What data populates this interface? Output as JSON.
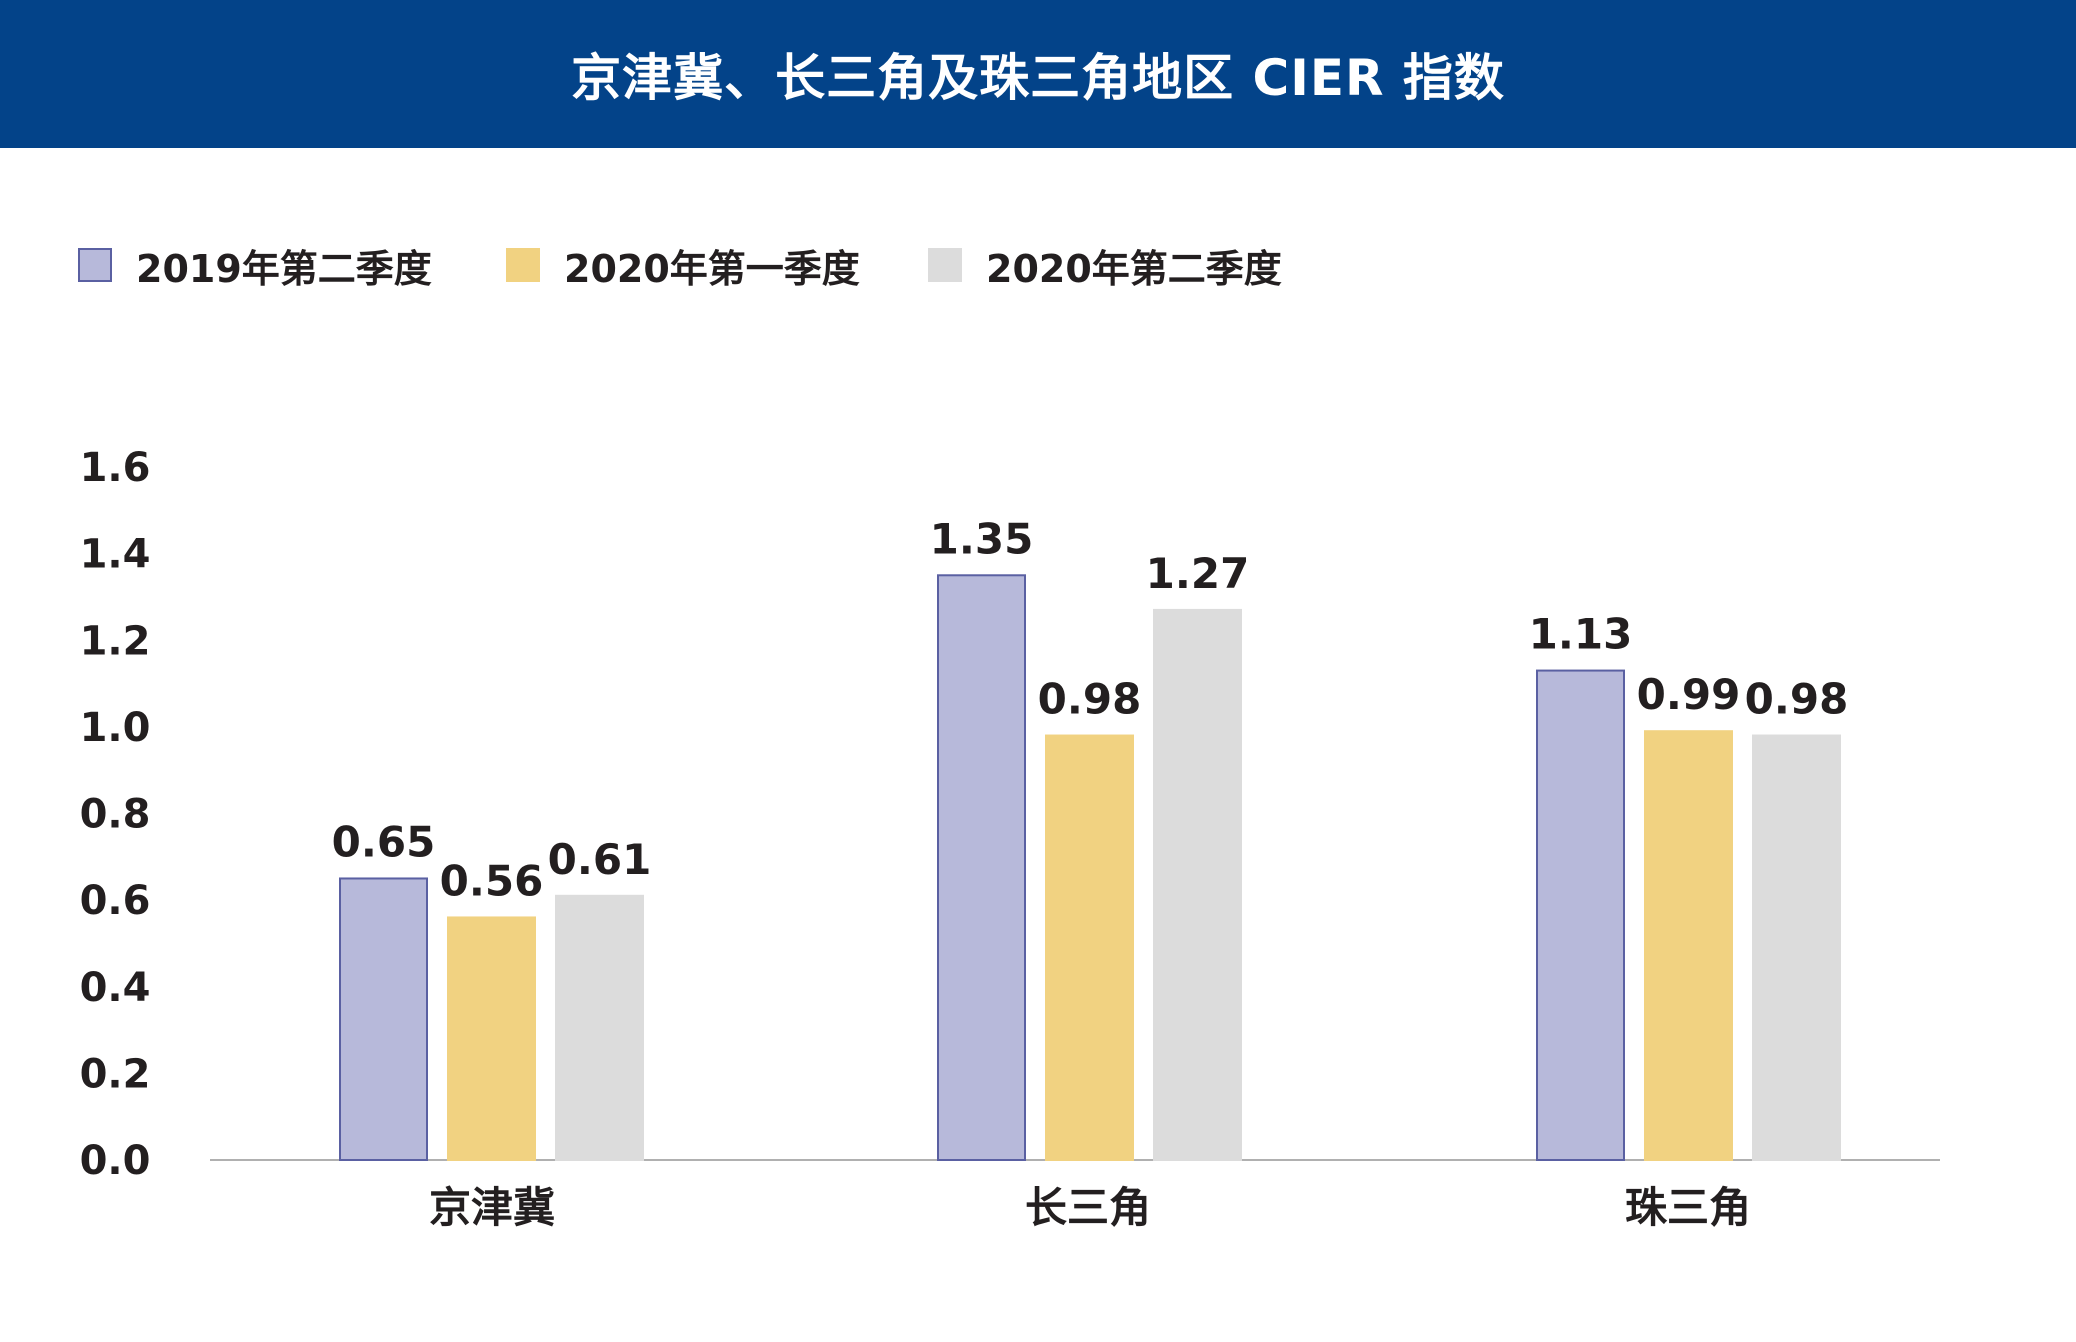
{
  "chart_data": {
    "type": "bar",
    "title": "京津冀、长三角及珠三角地区 CIER 指数",
    "categories": [
      "京津冀",
      "长三角",
      "珠三角"
    ],
    "series": [
      {
        "name": "2019年第二季度",
        "values": [
          0.65,
          1.35,
          1.13
        ],
        "labels": [
          "0.65",
          "1.35",
          "1.13"
        ],
        "color": "#b7b9da",
        "stroke": "#5a60a2"
      },
      {
        "name": "2020年第一季度",
        "values": [
          0.56,
          0.98,
          0.99
        ],
        "labels": [
          "0.56",
          "0.98",
          "0.99"
        ],
        "color": "#f1d281",
        "stroke": "#f1d281"
      },
      {
        "name": "2020年第二季度",
        "values": [
          0.61,
          1.27,
          0.98
        ],
        "labels": [
          "0.61",
          "1.27",
          "0.98"
        ],
        "color": "#dcdcdc",
        "stroke": "#dcdcdc"
      }
    ],
    "y_ticks": [
      "0.0",
      "0.2",
      "0.4",
      "0.6",
      "0.8",
      "1.0",
      "1.2",
      "1.4",
      "1.6"
    ],
    "ylim": [
      0,
      1.6
    ],
    "xlabel": "",
    "ylabel": "",
    "grid": false,
    "legend_position": "top-left"
  },
  "colors": {
    "header_background": "#034389",
    "header_text": "#ffffff",
    "axis_line": "#b0b0b0",
    "text": "#231f20"
  }
}
